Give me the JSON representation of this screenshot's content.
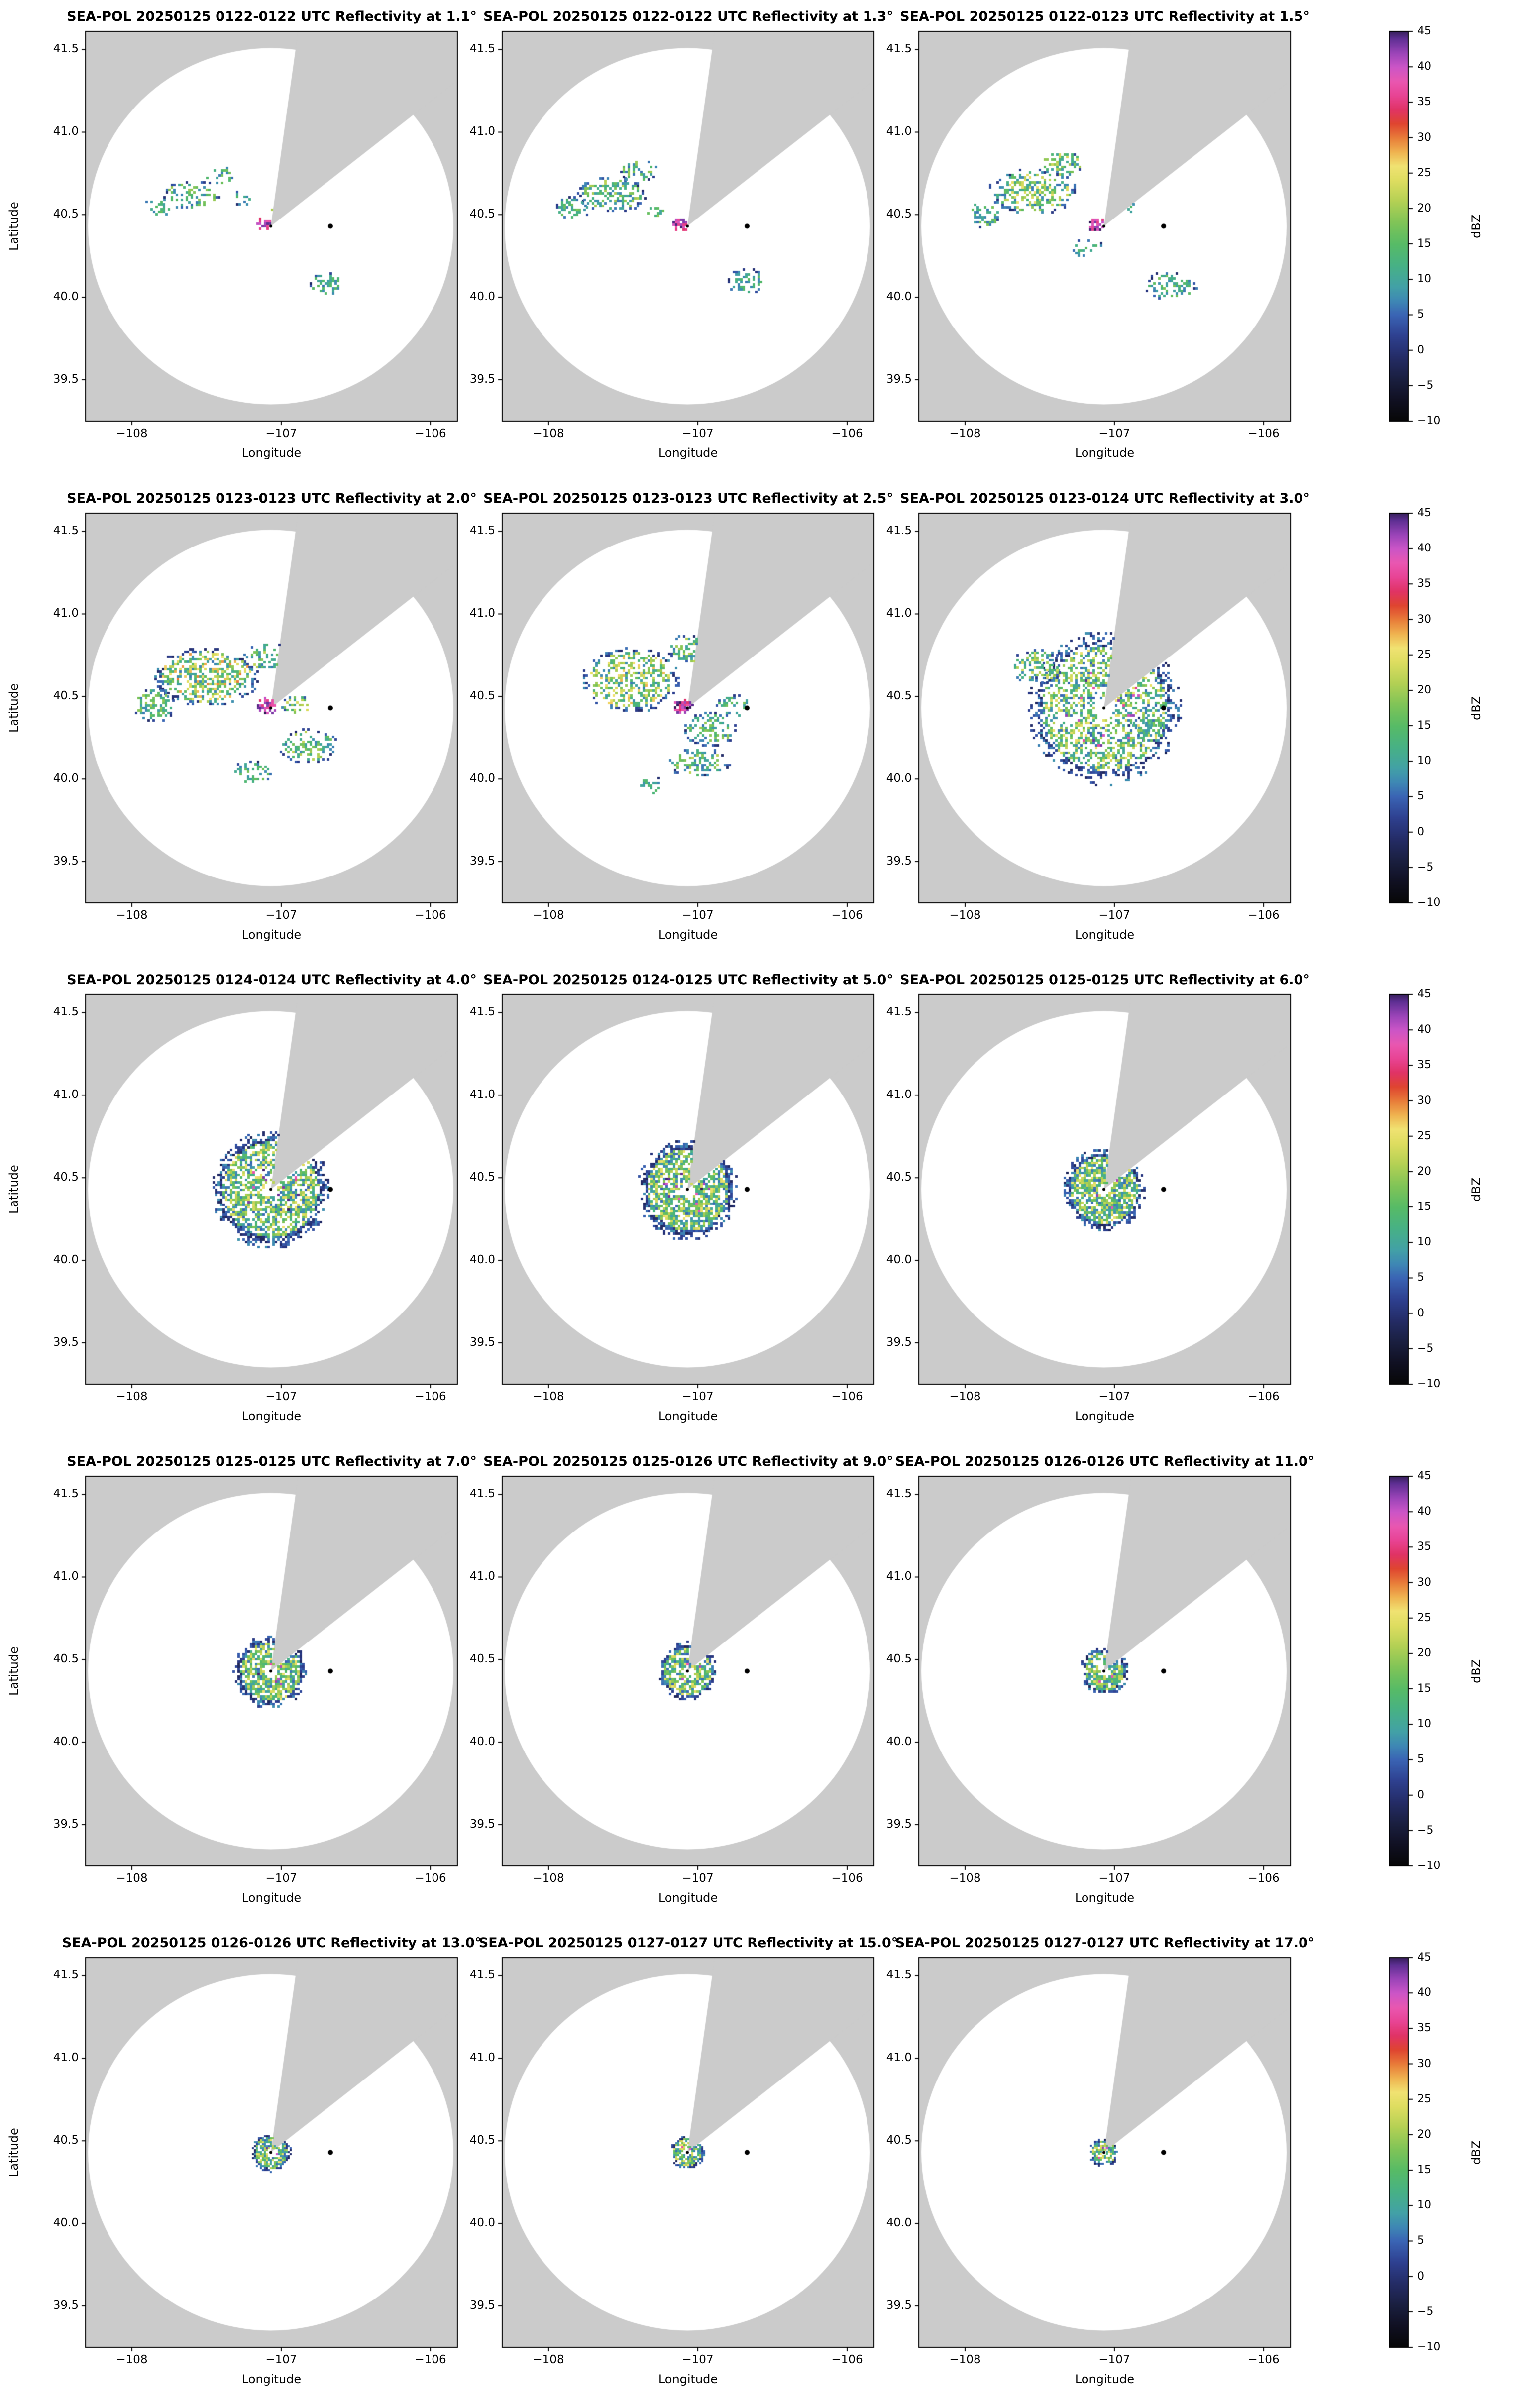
{
  "chart_data": {
    "type": "heatmap",
    "instrument": "SEA-POL",
    "date": "20250125",
    "field": "Reflectivity",
    "units": "dBZ",
    "axes": {
      "xlabel": "Longitude",
      "ylabel": "Latitude",
      "x_ticks": [
        "−108",
        "−107",
        "−106"
      ],
      "x_tick_values": [
        -108,
        -107,
        -106
      ],
      "y_ticks": [
        "41.5",
        "41.0",
        "40.5",
        "40.0",
        "39.5"
      ],
      "y_tick_values": [
        41.5,
        41.0,
        40.5,
        40.0,
        39.5
      ],
      "x_range": [
        -108.31,
        -105.82
      ],
      "y_range": [
        39.25,
        41.61
      ]
    },
    "colorbar": {
      "label": "dBZ",
      "tick_labels": [
        "45",
        "40",
        "35",
        "30",
        "25",
        "20",
        "15",
        "10",
        "5",
        "0",
        "−5",
        "−10"
      ],
      "tick_values": [
        45,
        40,
        35,
        30,
        25,
        20,
        15,
        10,
        5,
        0,
        -5,
        -10
      ],
      "range": [
        -10,
        45
      ],
      "colormap_stops": [
        [
          -10,
          "#070707"
        ],
        [
          -7,
          "#101022"
        ],
        [
          -4,
          "#1a1f40"
        ],
        [
          -1,
          "#242c66"
        ],
        [
          2,
          "#2e4090"
        ],
        [
          5,
          "#3a64b4"
        ],
        [
          7,
          "#3e88b4"
        ],
        [
          9,
          "#42a1a6"
        ],
        [
          12,
          "#47b185"
        ],
        [
          15,
          "#57bb66"
        ],
        [
          18,
          "#80c457"
        ],
        [
          21,
          "#b3d054"
        ],
        [
          24,
          "#dedd60"
        ],
        [
          26,
          "#f0e272"
        ],
        [
          28,
          "#efb350"
        ],
        [
          30,
          "#e87b39"
        ],
        [
          32,
          "#df4530"
        ],
        [
          34,
          "#e03366"
        ],
        [
          36,
          "#e84495"
        ],
        [
          38,
          "#e957b1"
        ],
        [
          40,
          "#cb55c7"
        ],
        [
          42,
          "#9a44b8"
        ],
        [
          44,
          "#5e2f93"
        ],
        [
          45,
          "#38205c"
        ]
      ]
    },
    "map": {
      "background_color": "#cbcbcb",
      "coverage_color": "#ffffff",
      "radar_center": {
        "lon": -107.07,
        "lat": 40.43
      },
      "coverage_radius_deg": 1.22,
      "blocked_sector_azimuth_deg": [
        8,
        52
      ],
      "marker": {
        "lon": -106.67,
        "lat": 40.43,
        "color": "#000000"
      }
    },
    "panels": [
      {
        "title": "SEA-POL 20250125 0122-0122 UTC Reflectivity at 1.1°",
        "time_utc": "0122-0122",
        "elevation_deg": 1.1,
        "echo": {
          "mode": "scattered",
          "clusters": [
            {
              "lon": -107.6,
              "lat": 40.62,
              "rx": 0.2,
              "ry": 0.09,
              "d": 0.45,
              "v0": 6,
              "v1": 20
            },
            {
              "lon": -107.82,
              "lat": 40.55,
              "rx": 0.1,
              "ry": 0.06,
              "d": 0.4,
              "v0": 6,
              "v1": 16
            },
            {
              "lon": -107.42,
              "lat": 40.74,
              "rx": 0.11,
              "ry": 0.06,
              "d": 0.35,
              "v0": 6,
              "v1": 18
            },
            {
              "lon": -107.25,
              "lat": 40.6,
              "rx": 0.08,
              "ry": 0.05,
              "d": 0.3,
              "v0": 6,
              "v1": 16
            },
            {
              "lon": -106.7,
              "lat": 40.08,
              "rx": 0.12,
              "ry": 0.07,
              "d": 0.5,
              "v0": 6,
              "v1": 16
            },
            {
              "lon": -107.12,
              "lat": 40.44,
              "rx": 0.055,
              "ry": 0.04,
              "d": 0.95,
              "v0": 34,
              "v1": 46
            },
            {
              "lon": -107.03,
              "lat": 40.52,
              "rx": 0.05,
              "ry": 0.035,
              "d": 0.35,
              "v0": 8,
              "v1": 22
            }
          ]
        }
      },
      {
        "title": "SEA-POL 20250125 0122-0122 UTC Reflectivity at 1.3°",
        "time_utc": "0122-0122",
        "elevation_deg": 1.3,
        "echo": {
          "mode": "scattered",
          "clusters": [
            {
              "lon": -107.58,
              "lat": 40.62,
              "rx": 0.24,
              "ry": 0.11,
              "d": 0.5,
              "v0": 6,
              "v1": 22
            },
            {
              "lon": -107.84,
              "lat": 40.54,
              "rx": 0.12,
              "ry": 0.07,
              "d": 0.45,
              "v0": 6,
              "v1": 18
            },
            {
              "lon": -107.4,
              "lat": 40.77,
              "rx": 0.13,
              "ry": 0.07,
              "d": 0.4,
              "v0": 6,
              "v1": 20
            },
            {
              "lon": -106.68,
              "lat": 40.1,
              "rx": 0.13,
              "ry": 0.08,
              "d": 0.55,
              "v0": 6,
              "v1": 16
            },
            {
              "lon": -107.12,
              "lat": 40.44,
              "rx": 0.06,
              "ry": 0.045,
              "d": 0.95,
              "v0": 34,
              "v1": 46
            },
            {
              "lon": -107.28,
              "lat": 40.52,
              "rx": 0.07,
              "ry": 0.04,
              "d": 0.35,
              "v0": 8,
              "v1": 20
            }
          ]
        }
      },
      {
        "title": "SEA-POL 20250125 0122-0123 UTC Reflectivity at 1.5°",
        "time_utc": "0122-0123",
        "elevation_deg": 1.5,
        "echo": {
          "mode": "scattered",
          "clusters": [
            {
              "lon": -107.55,
              "lat": 40.64,
              "rx": 0.3,
              "ry": 0.14,
              "d": 0.55,
              "v0": 6,
              "v1": 26
            },
            {
              "lon": -107.88,
              "lat": 40.5,
              "rx": 0.12,
              "ry": 0.09,
              "d": 0.45,
              "v0": 6,
              "v1": 18
            },
            {
              "lon": -107.35,
              "lat": 40.81,
              "rx": 0.15,
              "ry": 0.08,
              "d": 0.45,
              "v0": 6,
              "v1": 24
            },
            {
              "lon": -106.62,
              "lat": 40.07,
              "rx": 0.18,
              "ry": 0.09,
              "d": 0.5,
              "v0": 6,
              "v1": 18
            },
            {
              "lon": -107.12,
              "lat": 40.44,
              "rx": 0.06,
              "ry": 0.045,
              "d": 0.95,
              "v0": 34,
              "v1": 46
            },
            {
              "lon": -106.95,
              "lat": 40.54,
              "rx": 0.09,
              "ry": 0.05,
              "d": 0.4,
              "v0": 8,
              "v1": 20
            },
            {
              "lon": -107.18,
              "lat": 40.3,
              "rx": 0.11,
              "ry": 0.06,
              "d": 0.3,
              "v0": 6,
              "v1": 16
            }
          ]
        }
      },
      {
        "title": "SEA-POL 20250125 0123-0123 UTC Reflectivity at 2.0°",
        "time_utc": "0123-0123",
        "elevation_deg": 2.0,
        "echo": {
          "mode": "scattered",
          "clusters": [
            {
              "lon": -107.5,
              "lat": 40.62,
              "rx": 0.36,
              "ry": 0.18,
              "d": 0.6,
              "v0": 6,
              "v1": 30
            },
            {
              "lon": -107.85,
              "lat": 40.45,
              "rx": 0.14,
              "ry": 0.11,
              "d": 0.5,
              "v0": 6,
              "v1": 20
            },
            {
              "lon": -107.1,
              "lat": 40.74,
              "rx": 0.18,
              "ry": 0.09,
              "d": 0.45,
              "v0": 6,
              "v1": 22
            },
            {
              "lon": -106.82,
              "lat": 40.2,
              "rx": 0.2,
              "ry": 0.11,
              "d": 0.5,
              "v0": 6,
              "v1": 22
            },
            {
              "lon": -107.2,
              "lat": 40.04,
              "rx": 0.14,
              "ry": 0.07,
              "d": 0.4,
              "v0": 6,
              "v1": 18
            },
            {
              "lon": -106.9,
              "lat": 40.45,
              "rx": 0.11,
              "ry": 0.06,
              "d": 0.45,
              "v0": 8,
              "v1": 24
            },
            {
              "lon": -107.1,
              "lat": 40.44,
              "rx": 0.075,
              "ry": 0.055,
              "d": 0.95,
              "v0": 34,
              "v1": 46
            }
          ]
        }
      },
      {
        "title": "SEA-POL 20250125 0123-0123 UTC Reflectivity at 2.5°",
        "time_utc": "0123-0123",
        "elevation_deg": 2.5,
        "echo": {
          "mode": "scattered",
          "clusters": [
            {
              "lon": -107.45,
              "lat": 40.6,
              "rx": 0.33,
              "ry": 0.2,
              "d": 0.6,
              "v0": 6,
              "v1": 28
            },
            {
              "lon": -107.05,
              "lat": 40.79,
              "rx": 0.16,
              "ry": 0.09,
              "d": 0.5,
              "v0": 6,
              "v1": 22
            },
            {
              "lon": -106.92,
              "lat": 40.3,
              "rx": 0.18,
              "ry": 0.11,
              "d": 0.5,
              "v0": 6,
              "v1": 20
            },
            {
              "lon": -107.0,
              "lat": 40.1,
              "rx": 0.22,
              "ry": 0.09,
              "d": 0.45,
              "v0": 6,
              "v1": 22
            },
            {
              "lon": -106.76,
              "lat": 40.44,
              "rx": 0.13,
              "ry": 0.07,
              "d": 0.4,
              "v0": 6,
              "v1": 18
            },
            {
              "lon": -107.32,
              "lat": 39.96,
              "rx": 0.11,
              "ry": 0.06,
              "d": 0.35,
              "v0": 6,
              "v1": 16
            },
            {
              "lon": -107.1,
              "lat": 40.44,
              "rx": 0.07,
              "ry": 0.05,
              "d": 0.95,
              "v0": 34,
              "v1": 46
            }
          ]
        }
      },
      {
        "title": "SEA-POL 20250125 0123-0124 UTC Reflectivity at 3.0°",
        "time_utc": "0123-0124",
        "elevation_deg": 3.0,
        "echo": {
          "mode": "compact",
          "r": 0.52,
          "hole": 0.07,
          "d": 0.5,
          "v1": 26,
          "clusters": [
            {
              "lon": -107.52,
              "lat": 40.68,
              "rx": 0.18,
              "ry": 0.11,
              "d": 0.5,
              "v0": 6,
              "v1": 24
            },
            {
              "lon": -106.78,
              "lat": 40.3,
              "rx": 0.14,
              "ry": 0.08,
              "d": 0.4,
              "v0": 6,
              "v1": 18
            }
          ]
        }
      },
      {
        "title": "SEA-POL 20250125 0124-0124 UTC Reflectivity at 4.0°",
        "time_utc": "0124-0124",
        "elevation_deg": 4.0,
        "echo": {
          "mode": "compact",
          "r": 0.4,
          "hole": 0.05,
          "d": 0.7,
          "v1": 26
        }
      },
      {
        "title": "SEA-POL 20250125 0124-0125 UTC Reflectivity at 5.0°",
        "time_utc": "0124-0125",
        "elevation_deg": 5.0,
        "echo": {
          "mode": "compact",
          "r": 0.34,
          "hole": 0.045,
          "d": 0.75,
          "v1": 26
        }
      },
      {
        "title": "SEA-POL 20250125 0125-0125 UTC Reflectivity at 6.0°",
        "time_utc": "0125-0125",
        "elevation_deg": 6.0,
        "echo": {
          "mode": "compact",
          "r": 0.28,
          "hole": 0.04,
          "d": 0.8,
          "v1": 26
        }
      },
      {
        "title": "SEA-POL 20250125 0125-0125 UTC Reflectivity at 7.0°",
        "time_utc": "0125-0125",
        "elevation_deg": 7.0,
        "echo": {
          "mode": "compact",
          "r": 0.25,
          "hole": 0.04,
          "d": 0.8,
          "v1": 26
        }
      },
      {
        "title": "SEA-POL 20250125 0125-0126 UTC Reflectivity at 9.0°",
        "time_utc": "0125-0126",
        "elevation_deg": 9.0,
        "echo": {
          "mode": "compact",
          "r": 0.2,
          "hole": 0.035,
          "d": 0.8,
          "v1": 26
        }
      },
      {
        "title": "SEA-POL 20250125 0126-0126 UTC Reflectivity at 11.0°",
        "time_utc": "0126-0126",
        "elevation_deg": 11.0,
        "echo": {
          "mode": "compact",
          "r": 0.165,
          "hole": 0.03,
          "d": 0.82,
          "v1": 26
        }
      },
      {
        "title": "SEA-POL 20250125 0126-0126 UTC Reflectivity at 13.0°",
        "time_utc": "0126-0126",
        "elevation_deg": 13.0,
        "echo": {
          "mode": "compact",
          "r": 0.135,
          "hole": 0.03,
          "d": 0.85,
          "v1": 26
        }
      },
      {
        "title": "SEA-POL 20250125 0127-0127 UTC Reflectivity at 15.0°",
        "time_utc": "0127-0127",
        "elevation_deg": 15.0,
        "echo": {
          "mode": "compact",
          "r": 0.115,
          "hole": 0.025,
          "d": 0.85,
          "v1": 26
        }
      },
      {
        "title": "SEA-POL 20250125 0127-0127 UTC Reflectivity at 17.0°",
        "time_utc": "0127-0127",
        "elevation_deg": 17.0,
        "echo": {
          "mode": "compact",
          "r": 0.1,
          "hole": 0.02,
          "d": 0.85,
          "v1": 26
        }
      }
    ]
  }
}
